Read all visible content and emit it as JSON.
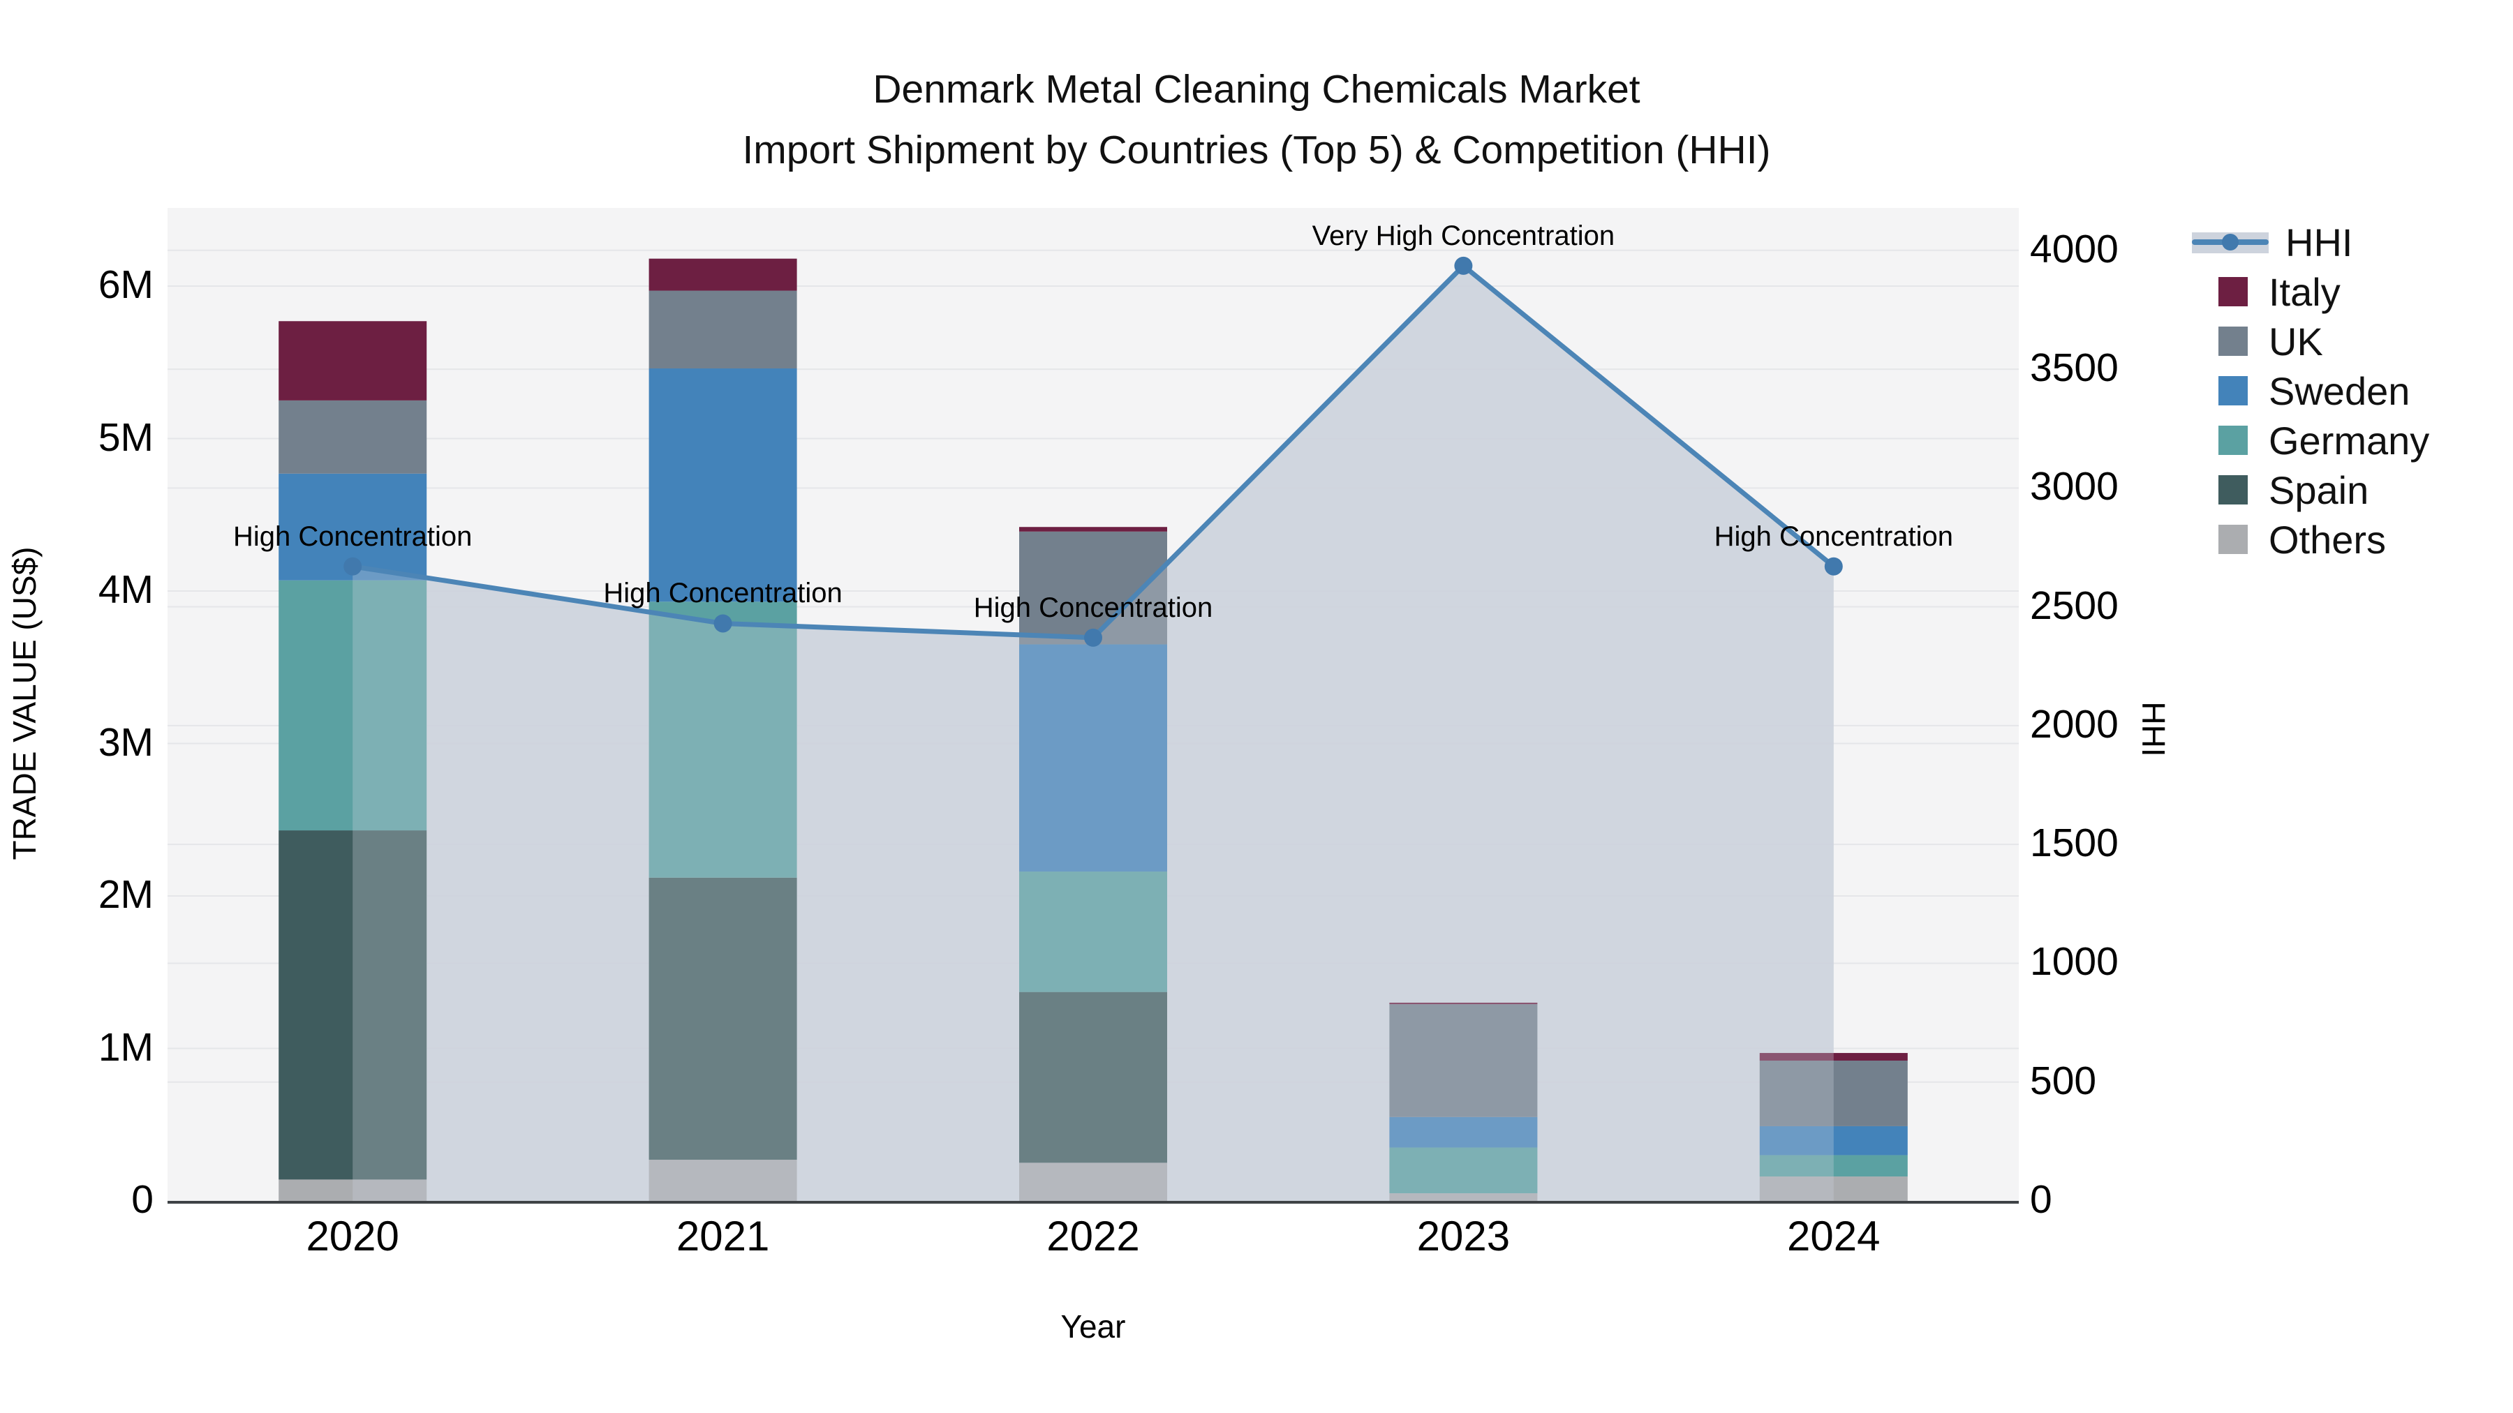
{
  "title": {
    "line1": "Denmark Metal Cleaning Chemicals Market",
    "line2": "Import Shipment by Countries (Top 5) & Competition (HHI)"
  },
  "chart_data": {
    "type": "bar",
    "subtype": "stacked-bars-with-hhi-line-and-area",
    "title": "Denmark Metal Cleaning Chemicals Market — Import Shipment by Countries (Top 5) & Competition (HHI)",
    "categories": [
      "2020",
      "2021",
      "2022",
      "2023",
      "2024"
    ],
    "stack_note": "series listed bottom-to-top of stack; values in millions US$",
    "series": [
      {
        "name": "Others",
        "color": "#abadb0",
        "values_usd_m": [
          0.14,
          0.27,
          0.25,
          0.05,
          0.16
        ]
      },
      {
        "name": "Spain",
        "color": "#3f5c5e",
        "values_usd_m": [
          2.29,
          1.85,
          1.12,
          0.0,
          0.0
        ]
      },
      {
        "name": "Germany",
        "color": "#5ba1a2",
        "values_usd_m": [
          1.64,
          1.81,
          0.79,
          0.3,
          0.14
        ]
      },
      {
        "name": "Sweden",
        "color": "#4383ba",
        "values_usd_m": [
          0.7,
          1.53,
          1.49,
          0.2,
          0.19
        ]
      },
      {
        "name": "UK",
        "color": "#73808d",
        "values_usd_m": [
          0.48,
          0.51,
          0.74,
          0.74,
          0.43
        ]
      },
      {
        "name": "Italy",
        "color": "#6d1f42",
        "values_usd_m": [
          0.52,
          0.21,
          0.03,
          0.01,
          0.05
        ]
      }
    ],
    "bar_totals_usd_m": [
      5.77,
      6.17,
      4.42,
      1.3,
      0.97
    ],
    "line_series": {
      "name": "HHI",
      "color": "#4c85b6",
      "marker_color": "#4179ad",
      "area_fill": "#cdd3dd",
      "values": [
        2670,
        2430,
        2370,
        3935,
        2670
      ]
    },
    "annotations": [
      {
        "category": "2020",
        "text": "High Concentration"
      },
      {
        "category": "2021",
        "text": "High Concentration"
      },
      {
        "category": "2022",
        "text": "High Concentration"
      },
      {
        "category": "2023",
        "text": "Very High Concentration"
      },
      {
        "category": "2024",
        "text": "High Concentration"
      }
    ],
    "left_axis": {
      "title": "TRADE VALUE (US$)",
      "range_usd_m": [
        0,
        6.51
      ],
      "ticks": [
        {
          "label": "0",
          "value": 0
        },
        {
          "label": "1M",
          "value": 1
        },
        {
          "label": "2M",
          "value": 2
        },
        {
          "label": "3M",
          "value": 3
        },
        {
          "label": "4M",
          "value": 4
        },
        {
          "label": "5M",
          "value": 5
        },
        {
          "label": "6M",
          "value": 6
        }
      ]
    },
    "right_axis": {
      "title": "HHI",
      "range": [
        0,
        4178
      ],
      "ticks": [
        {
          "label": "0",
          "value": 0
        },
        {
          "label": "500",
          "value": 500
        },
        {
          "label": "1000",
          "value": 1000
        },
        {
          "label": "1500",
          "value": 1500
        },
        {
          "label": "2000",
          "value": 2000
        },
        {
          "label": "2500",
          "value": 2500
        },
        {
          "label": "3000",
          "value": 3000
        },
        {
          "label": "3500",
          "value": 3500
        },
        {
          "label": "4000",
          "value": 4000
        }
      ]
    },
    "x_axis": {
      "title": "Year"
    },
    "legend": {
      "position": "right",
      "items": [
        "HHI",
        "Italy",
        "UK",
        "Sweden",
        "Germany",
        "Spain",
        "Others"
      ]
    },
    "layout_hints": {
      "grid": "both-axes",
      "plot_background": "#f4f4f5",
      "gridline_color": "#e5e6e9",
      "axisline_color": "#3f4346"
    }
  }
}
